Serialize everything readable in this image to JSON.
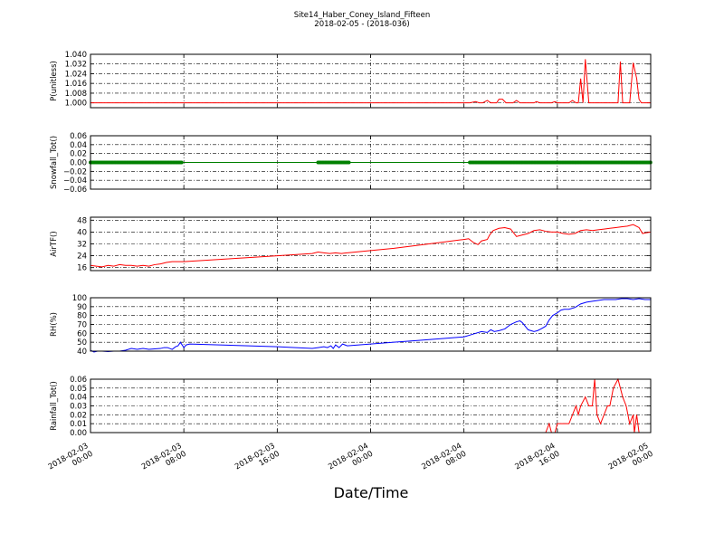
{
  "figure": {
    "title": "Site14_Haber_Coney_Island_Fifteen",
    "subtitle": "2018-02-05 - (2018-036)",
    "xlabel": "Date/Time",
    "x_ticks": [
      {
        "t": 0,
        "label": [
          "2018-02-03",
          "00:00"
        ]
      },
      {
        "t": 8,
        "label": [
          "2018-02-03",
          "08:00"
        ]
      },
      {
        "t": 16,
        "label": [
          "2018-02-03",
          "16:00"
        ]
      },
      {
        "t": 24,
        "label": [
          "2018-02-04",
          "00:00"
        ]
      },
      {
        "t": 32,
        "label": [
          "2018-02-04",
          "08:00"
        ]
      },
      {
        "t": 40,
        "label": [
          "2018-02-04",
          "16:00"
        ]
      },
      {
        "t": 48,
        "label": [
          "2018-02-05",
          "00:00"
        ]
      }
    ],
    "x_range_hours": [
      0,
      48
    ],
    "x_start": "2018-02-03 00:00"
  },
  "chart_data": [
    {
      "type": "line",
      "ylabel": "P(unitless)",
      "ylim": [
        0.996,
        1.04
      ],
      "yticks": [
        1.0,
        1.008,
        1.016,
        1.024,
        1.032,
        1.04
      ],
      "ytick_labels": [
        "1.000",
        "1.008",
        "1.016",
        "1.024",
        "1.032",
        "1.040"
      ],
      "color": "#ff0000",
      "markers": false,
      "grid": true,
      "points": [
        [
          0,
          1.0
        ],
        [
          31.5,
          1.0
        ],
        [
          32.5,
          1.0
        ],
        [
          33,
          1.001
        ],
        [
          33.3,
          1.0
        ],
        [
          33.6,
          1.0
        ],
        [
          34,
          1.002
        ],
        [
          34.3,
          1.0
        ],
        [
          34.8,
          1.0
        ],
        [
          35,
          1.003
        ],
        [
          35.3,
          1.003
        ],
        [
          35.6,
          1.0
        ],
        [
          36.2,
          1.0
        ],
        [
          36.5,
          1.002
        ],
        [
          36.8,
          1.0
        ],
        [
          38,
          1.0
        ],
        [
          38.2,
          1.001
        ],
        [
          38.5,
          1.0
        ],
        [
          39.5,
          1.0
        ],
        [
          39.8,
          1.001
        ],
        [
          40,
          1.0
        ],
        [
          41,
          1.0
        ],
        [
          41.3,
          1.002
        ],
        [
          41.6,
          1.0
        ],
        [
          41.8,
          1.0
        ],
        [
          42,
          1.02
        ],
        [
          42.2,
          1.0
        ],
        [
          42.4,
          1.036
        ],
        [
          42.7,
          1.0
        ],
        [
          45.2,
          1.0
        ],
        [
          45.4,
          1.034
        ],
        [
          45.6,
          1.0
        ],
        [
          46.2,
          1.0
        ],
        [
          46.5,
          1.033
        ],
        [
          46.8,
          1.02
        ],
        [
          47,
          1.003
        ],
        [
          47.2,
          1.0
        ],
        [
          48,
          1.0
        ]
      ]
    },
    {
      "type": "line",
      "ylabel": "Snowfall_Tot()",
      "ylim": [
        -0.06,
        0.06
      ],
      "yticks": [
        -0.06,
        -0.04,
        -0.02,
        0.0,
        0.02,
        0.04,
        0.06
      ],
      "ytick_labels": [
        "−0.06",
        "−0.04",
        "−0.02",
        "0.00",
        "0.02",
        "0.04",
        "0.06"
      ],
      "color": "#008000",
      "markers": true,
      "grid": true,
      "points": [
        [
          0,
          0
        ],
        [
          48,
          0
        ]
      ],
      "marker_ranges": [
        [
          0,
          7.8
        ],
        [
          19.5,
          22.2
        ],
        [
          32.5,
          48
        ]
      ],
      "marker_step": 0.12
    },
    {
      "type": "line",
      "ylabel": "AirTF()",
      "ylim": [
        14,
        50
      ],
      "yticks": [
        16,
        24,
        32,
        40,
        48
      ],
      "ytick_labels": [
        "16",
        "24",
        "32",
        "40",
        "48"
      ],
      "color": "#ff0000",
      "markers": false,
      "grid": true,
      "points": [
        [
          0,
          17.5
        ],
        [
          0.5,
          17
        ],
        [
          1,
          16.5
        ],
        [
          1.5,
          17.5
        ],
        [
          2,
          17
        ],
        [
          2.5,
          18
        ],
        [
          3,
          17.5
        ],
        [
          3.5,
          17.5
        ],
        [
          4,
          17
        ],
        [
          4.5,
          17.5
        ],
        [
          5,
          17
        ],
        [
          5.5,
          18
        ],
        [
          6,
          18.5
        ],
        [
          6.5,
          19.5
        ],
        [
          7,
          20
        ],
        [
          7.5,
          20
        ],
        [
          8,
          20
        ],
        [
          12,
          22
        ],
        [
          16,
          24
        ],
        [
          19,
          25.5
        ],
        [
          19.5,
          26.5
        ],
        [
          20,
          26
        ],
        [
          20.5,
          25.5
        ],
        [
          21,
          26
        ],
        [
          21.5,
          25.5
        ],
        [
          22,
          26
        ],
        [
          24,
          27.5
        ],
        [
          26,
          29
        ],
        [
          28,
          31
        ],
        [
          30,
          33
        ],
        [
          32,
          35
        ],
        [
          32.4,
          35.5
        ],
        [
          32.8,
          33
        ],
        [
          33.2,
          31.5
        ],
        [
          33.5,
          34
        ],
        [
          34,
          35
        ],
        [
          34.2,
          38
        ],
        [
          34.5,
          41
        ],
        [
          35,
          42.5
        ],
        [
          35.5,
          43
        ],
        [
          36,
          42
        ],
        [
          36.5,
          37
        ],
        [
          37,
          38
        ],
        [
          37.5,
          39
        ],
        [
          38,
          41
        ],
        [
          38.5,
          41.5
        ],
        [
          39,
          40.5
        ],
        [
          39.5,
          40
        ],
        [
          40,
          40
        ],
        [
          40.5,
          39
        ],
        [
          41,
          38.5
        ],
        [
          41.5,
          39
        ],
        [
          42,
          41
        ],
        [
          42.5,
          41.5
        ],
        [
          43,
          41
        ],
        [
          43.5,
          41.5
        ],
        [
          44,
          42
        ],
        [
          44.5,
          42.5
        ],
        [
          45,
          43
        ],
        [
          45.5,
          43.5
        ],
        [
          46,
          44
        ],
        [
          46.5,
          45
        ],
        [
          47,
          43
        ],
        [
          47.3,
          39
        ],
        [
          47.6,
          39.5
        ],
        [
          48,
          40
        ]
      ]
    },
    {
      "type": "line",
      "ylabel": "RH(%)",
      "ylim": [
        40,
        100
      ],
      "yticks": [
        40,
        50,
        60,
        70,
        80,
        90,
        100
      ],
      "ytick_labels": [
        "40",
        "50",
        "60",
        "70",
        "80",
        "90",
        "100"
      ],
      "color": "#0000ff",
      "markers": false,
      "grid": true,
      "points": [
        [
          0,
          41
        ],
        [
          0.3,
          39
        ],
        [
          0.6,
          40
        ],
        [
          1,
          40
        ],
        [
          1.5,
          39.5
        ],
        [
          2,
          40
        ],
        [
          2.5,
          40
        ],
        [
          3,
          41
        ],
        [
          3.5,
          43
        ],
        [
          4,
          42
        ],
        [
          4.5,
          43
        ],
        [
          5,
          42
        ],
        [
          5.5,
          42.5
        ],
        [
          6,
          43
        ],
        [
          6.3,
          44
        ],
        [
          6.6,
          44
        ],
        [
          7,
          42
        ],
        [
          7.3,
          45
        ],
        [
          7.5,
          46
        ],
        [
          7.7,
          50
        ],
        [
          8,
          44
        ],
        [
          8.2,
          47
        ],
        [
          8.5,
          48
        ],
        [
          16,
          45
        ],
        [
          19,
          43
        ],
        [
          19.5,
          44
        ],
        [
          20,
          45
        ],
        [
          20.3,
          44
        ],
        [
          20.6,
          46
        ],
        [
          20.8,
          43
        ],
        [
          21,
          47
        ],
        [
          21.3,
          44
        ],
        [
          21.6,
          48
        ],
        [
          22,
          46
        ],
        [
          24,
          48
        ],
        [
          26,
          50
        ],
        [
          28,
          52
        ],
        [
          30,
          54
        ],
        [
          32,
          56
        ],
        [
          32.5,
          58
        ],
        [
          33,
          60
        ],
        [
          33.5,
          62
        ],
        [
          34,
          61
        ],
        [
          34.3,
          64
        ],
        [
          34.6,
          62
        ],
        [
          35,
          63
        ],
        [
          35.5,
          65
        ],
        [
          36,
          70
        ],
        [
          36.5,
          73
        ],
        [
          36.8,
          74
        ],
        [
          37,
          72
        ],
        [
          37.5,
          64
        ],
        [
          38,
          62
        ],
        [
          38.3,
          63
        ],
        [
          38.6,
          65
        ],
        [
          39,
          68
        ],
        [
          39.3,
          75
        ],
        [
          39.6,
          80
        ],
        [
          40,
          83
        ],
        [
          40.3,
          86
        ],
        [
          40.6,
          87
        ],
        [
          41,
          87
        ],
        [
          41.5,
          89
        ],
        [
          42,
          93
        ],
        [
          42.5,
          95
        ],
        [
          43,
          96
        ],
        [
          44,
          98
        ],
        [
          45,
          98
        ],
        [
          45.5,
          99
        ],
        [
          46,
          99
        ],
        [
          46.5,
          98
        ],
        [
          47,
          99
        ],
        [
          47.5,
          98
        ],
        [
          48,
          98
        ]
      ]
    },
    {
      "type": "line",
      "ylabel": "Rainfall_Tot()",
      "ylim": [
        0.0,
        0.06
      ],
      "yticks": [
        0.0,
        0.01,
        0.02,
        0.03,
        0.04,
        0.05,
        0.06
      ],
      "ytick_labels": [
        "0.00",
        "0.01",
        "0.02",
        "0.03",
        "0.04",
        "0.05",
        "0.06"
      ],
      "color": "#ff0000",
      "markers": false,
      "grid": true,
      "points": [
        [
          0,
          0
        ],
        [
          39,
          0
        ],
        [
          39.3,
          0.01
        ],
        [
          39.5,
          0
        ],
        [
          39.8,
          0
        ],
        [
          40,
          0.01
        ],
        [
          41,
          0.01
        ],
        [
          41.3,
          0.02
        ],
        [
          41.6,
          0.03
        ],
        [
          41.8,
          0.02
        ],
        [
          42,
          0.03
        ],
        [
          42.4,
          0.04
        ],
        [
          42.7,
          0.03
        ],
        [
          43,
          0.03
        ],
        [
          43.2,
          0.06
        ],
        [
          43.4,
          0.02
        ],
        [
          43.7,
          0.01
        ],
        [
          44,
          0.02
        ],
        [
          44.3,
          0.03
        ],
        [
          44.5,
          0.03
        ],
        [
          44.8,
          0.05
        ],
        [
          45.2,
          0.06
        ],
        [
          45.6,
          0.04
        ],
        [
          45.9,
          0.03
        ],
        [
          46.2,
          0.01
        ],
        [
          46.5,
          0.02
        ],
        [
          46.6,
          0
        ],
        [
          46.8,
          0.02
        ],
        [
          47,
          0
        ],
        [
          48,
          0
        ]
      ]
    }
  ]
}
